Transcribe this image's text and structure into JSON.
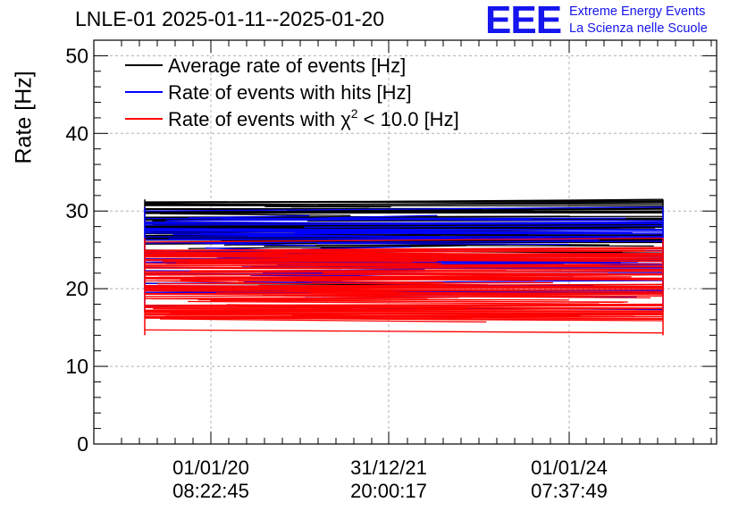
{
  "header": {
    "title": "LNLE-01 2025-01-11--2025-01-20",
    "logo_text": "EEE",
    "logo_line1": "Extreme Energy Events",
    "logo_line2": "La Scienza nelle Scuole"
  },
  "chart_data": {
    "type": "line",
    "ylabel": "Rate [Hz]",
    "ylim": [
      0,
      52
    ],
    "yticks": [
      0,
      10,
      20,
      30,
      40,
      50
    ],
    "xticks": [
      {
        "date": "01/01/20",
        "time": "08:22:45"
      },
      {
        "date": "31/12/21",
        "time": "20:00:17"
      },
      {
        "date": "01/01/24",
        "time": "07:37:49"
      }
    ],
    "grid": true,
    "legend_position": "top-left",
    "series": [
      {
        "name": "Average rate of events [Hz]",
        "color": "#000000",
        "range": [
          19.5,
          31.5
        ]
      },
      {
        "name": "Rate of events with hits [Hz]",
        "color": "#0000ff",
        "range": [
          16.5,
          30.5
        ]
      },
      {
        "name": "Rate of events with χ² < 10.0 [Hz]",
        "color": "#ff0000",
        "range": [
          13.5,
          26.5
        ]
      }
    ],
    "legend": [
      {
        "prefix": "Average rate of events [Hz]",
        "sup": "",
        "suffix": ""
      },
      {
        "prefix": "Rate of events with hits [Hz]",
        "sup": "",
        "suffix": ""
      },
      {
        "prefix": "Rate of events with χ",
        "sup": "2",
        "suffix": " < 10.0 [Hz]"
      }
    ]
  }
}
